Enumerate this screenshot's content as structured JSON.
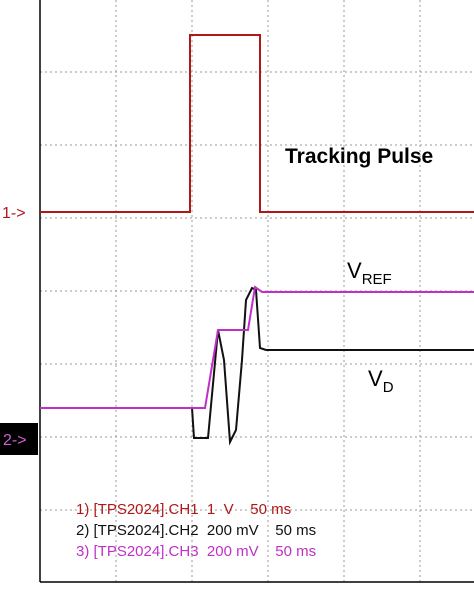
{
  "markers": {
    "ch1": "1->",
    "ch2": "2->"
  },
  "labels": {
    "tracking_pulse": "Tracking Pulse",
    "vref": "V",
    "vref_sub": "REF",
    "vd": "V",
    "vd_sub": "D"
  },
  "legend": [
    "1) [TPS2024].CH1  1  V    50 ms",
    "2) [TPS2024].CH2  200 mV    50 ms",
    "3) [TPS2024].CH3  200 mV    50 ms"
  ]
}
